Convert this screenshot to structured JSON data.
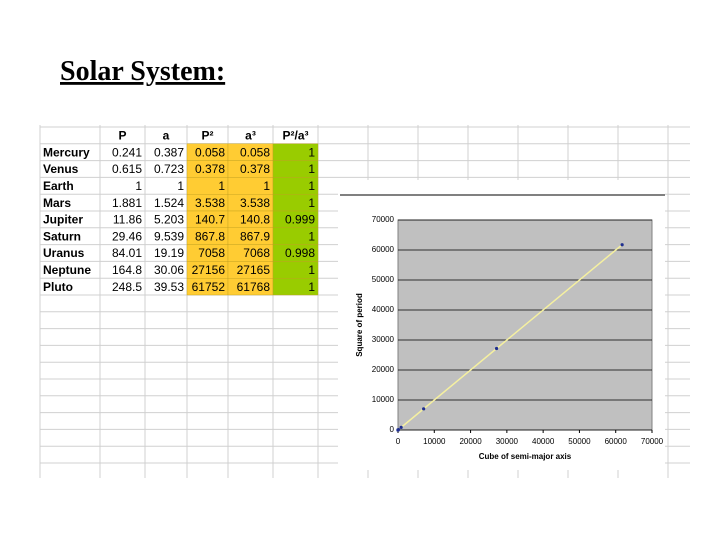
{
  "title": "Solar System:",
  "table": {
    "headers": [
      "P",
      "a",
      "P²",
      "a³",
      "P²/a³"
    ],
    "rows": [
      {
        "name": "Mercury",
        "cells": [
          0.241,
          0.387,
          0.058,
          0.058,
          1
        ]
      },
      {
        "name": "Venus",
        "cells": [
          0.615,
          0.723,
          0.378,
          0.378,
          1
        ]
      },
      {
        "name": "Earth",
        "cells": [
          1,
          1,
          1,
          1,
          1
        ]
      },
      {
        "name": "Mars",
        "cells": [
          1.881,
          1.524,
          3.538,
          3.538,
          1
        ]
      },
      {
        "name": "Jupiter",
        "cells": [
          11.86,
          5.203,
          140.7,
          140.8,
          0.999
        ]
      },
      {
        "name": "Saturn",
        "cells": [
          29.46,
          9.539,
          867.8,
          867.9,
          1
        ]
      },
      {
        "name": "Uranus",
        "cells": [
          84.01,
          19.19,
          7058,
          7068,
          0.998
        ]
      },
      {
        "name": "Neptune",
        "cells": [
          164.8,
          30.06,
          27156,
          27165,
          1
        ]
      },
      {
        "name": "Pluto",
        "cells": [
          248.5,
          39.53,
          61752,
          61768,
          1
        ]
      }
    ]
  },
  "chart_data": {
    "type": "scatter",
    "x_label": "Cube of semi-major axis",
    "y_label": "Square of period",
    "x": [
      0.058,
      0.378,
      1,
      3.538,
      140.8,
      867.9,
      7068,
      27165,
      61768
    ],
    "values": [
      0.058,
      0.378,
      1,
      3.538,
      140.7,
      867.8,
      7058,
      27156,
      61752
    ],
    "color": "#1f2f8f",
    "trendline_color": "#f5f0a0",
    "xlim": [
      0,
      70000
    ],
    "ylim": [
      0,
      70000
    ],
    "xticks": [
      0,
      10000,
      20000,
      30000,
      40000,
      50000,
      60000,
      70000
    ],
    "yticks": [
      0,
      10000,
      20000,
      30000,
      40000,
      50000,
      60000,
      70000
    ],
    "grid": true
  }
}
